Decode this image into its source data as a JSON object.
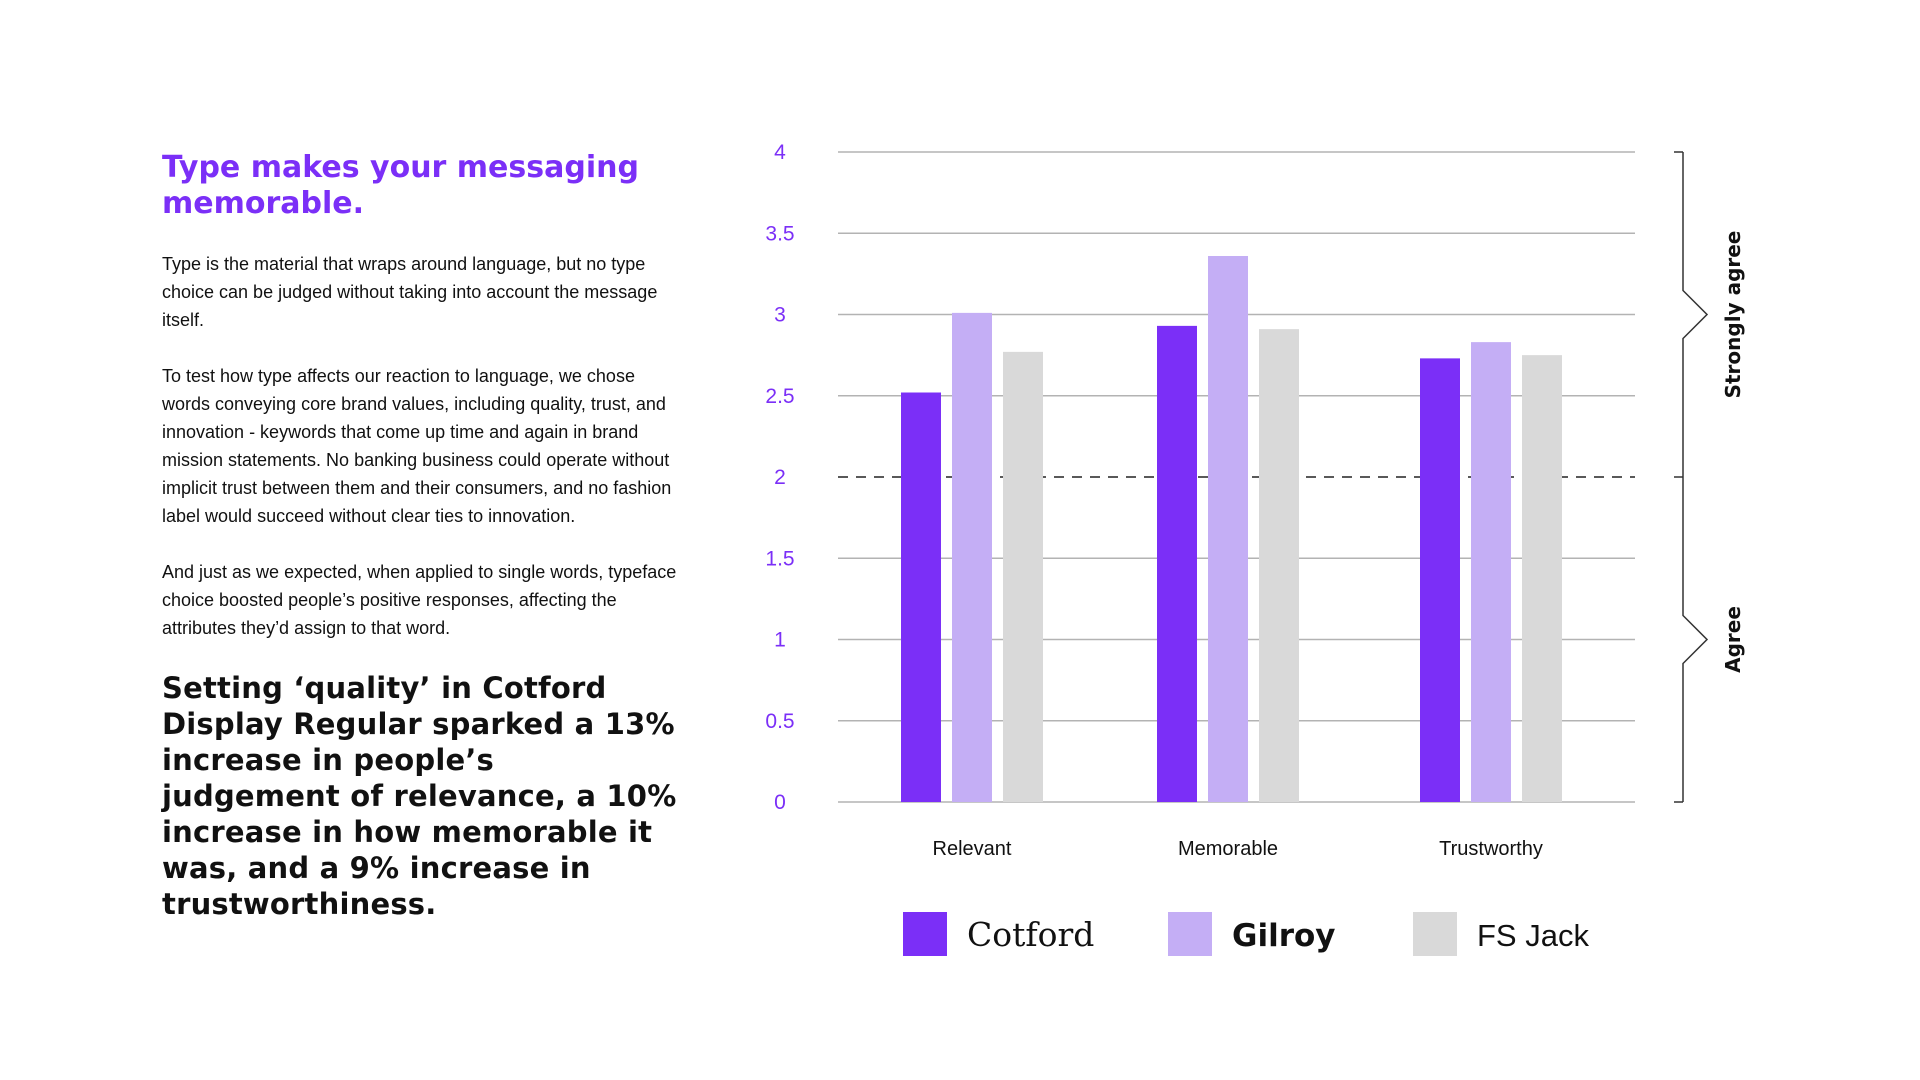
{
  "text": {
    "heading": "Type makes your messaging memorable.",
    "paragraphs": [
      "Type is the material that wraps around language, but no type choice can be judged without taking into account the message itself.",
      "To test how type affects our reaction to language, we chose words conveying core brand values, including quality, trust, and innovation - keywords that come up time and again in brand mission statements. No banking business could operate without implicit trust between them and their consumers, and no fashion label would succeed without clear ties to innovation.",
      "And just as we expected, when applied to single words, typeface choice boosted people’s positive responses, affecting the attributes they’d assign to that word."
    ],
    "callout": "Setting ‘quality’ in Cotford Display Regular sparked a 13% increase in people’s judgement of relevance, a 10% increase in how memorable it was, and a 9% increase in trustworthiness."
  },
  "chart_data": {
    "type": "bar",
    "categories": [
      "Relevant",
      "Memorable",
      "Trustworthy"
    ],
    "series": [
      {
        "name": "Cotford",
        "values": [
          2.52,
          2.93,
          2.73
        ],
        "color": "#7b2ff7"
      },
      {
        "name": "Gilroy",
        "values": [
          3.01,
          3.36,
          2.83
        ],
        "color": "#c4aef5"
      },
      {
        "name": "FS Jack",
        "values": [
          2.77,
          2.91,
          2.75
        ],
        "color": "#d9d9d9"
      }
    ],
    "ylim": [
      0,
      4
    ],
    "yticks": [
      "0",
      "0.5",
      "1",
      "1.5",
      "2",
      "2.5",
      "3",
      "3.5",
      "4"
    ],
    "tick_color": "#7b2ff7",
    "grid": true,
    "reference_line": 2,
    "legend_position": "bottom",
    "brackets": [
      {
        "label": "Strongly agree",
        "from": 2,
        "to": 4
      },
      {
        "label": "Agree",
        "from": 0,
        "to": 2
      }
    ]
  }
}
